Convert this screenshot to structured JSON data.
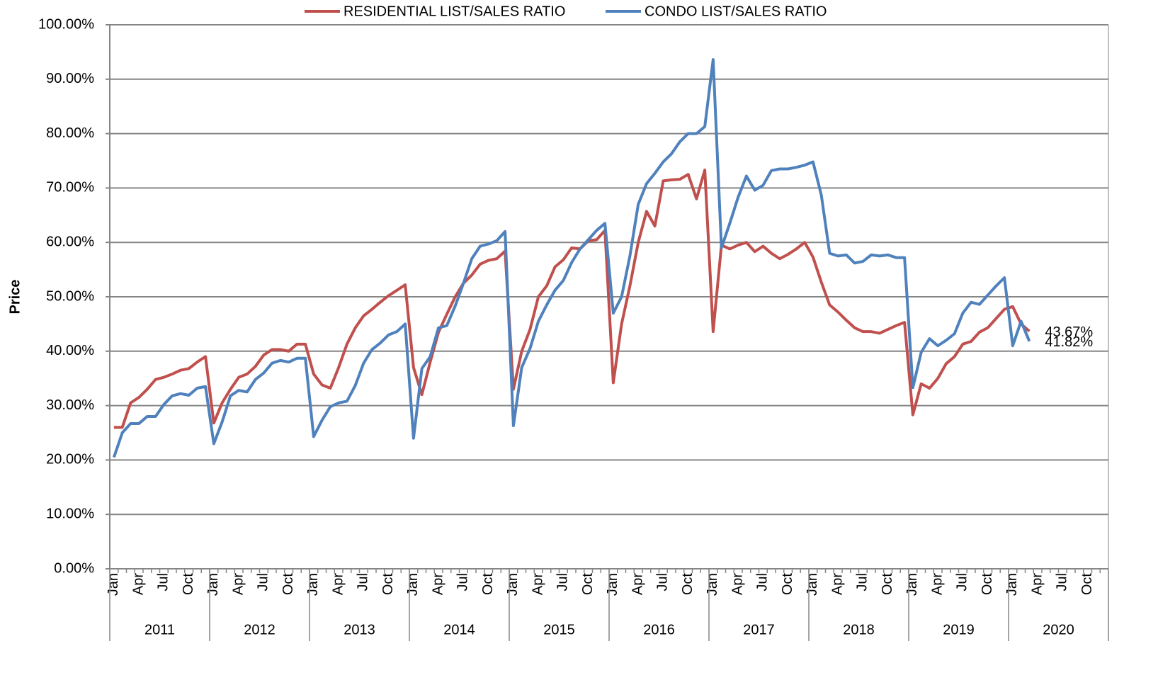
{
  "chart_data": {
    "type": "line",
    "y_label": "Price",
    "categories": [
      "Jan",
      null,
      null,
      "Apr",
      null,
      null,
      "Jul",
      null,
      null,
      "Oct",
      null,
      null,
      "Jan",
      null,
      null,
      "Apr",
      null,
      null,
      "Jul",
      null,
      null,
      "Oct",
      null,
      null,
      "Jan",
      null,
      null,
      "Apr",
      null,
      null,
      "Jul",
      null,
      null,
      "Oct",
      null,
      null,
      "Jan",
      null,
      null,
      "Apr",
      null,
      null,
      "Jul",
      null,
      null,
      "Oct",
      null,
      null,
      "Jan",
      null,
      null,
      "Apr",
      null,
      null,
      "Jul",
      null,
      null,
      "Oct",
      null,
      null,
      "Jan",
      null,
      null,
      "Apr",
      null,
      null,
      "Jul",
      null,
      null,
      "Oct",
      null,
      null,
      "Jan",
      null,
      null,
      "Apr",
      null,
      null,
      "Jul",
      null,
      null,
      "Oct",
      null,
      null,
      "Jan",
      null,
      null,
      "Apr",
      null,
      null,
      "Jul",
      null,
      null,
      "Oct",
      null,
      null,
      "Jan",
      null,
      null,
      "Apr",
      null,
      null,
      "Jul",
      null,
      null,
      "Oct",
      null,
      null,
      "Jan",
      null,
      null,
      "Apr",
      null,
      null,
      "Jul",
      null,
      null,
      "Oct",
      null,
      null
    ],
    "years": [
      "2011",
      "2012",
      "2013",
      "2014",
      "2015",
      "2016",
      "2017",
      "2018",
      "2019",
      "2020"
    ],
    "series": [
      {
        "name": "RESIDENTIAL LIST/SALES RATIO",
        "color": "#c0504d",
        "values": [
          26,
          26,
          30.5,
          31.5,
          33,
          34.8,
          35.2,
          35.8,
          36.5,
          36.8,
          38,
          39,
          26.8,
          30.5,
          33,
          35.2,
          35.8,
          37.2,
          39.3,
          40.3,
          40.3,
          40,
          41.3,
          41.3,
          35.8,
          33.8,
          33.2,
          37,
          41.3,
          44.3,
          46.5,
          47.7,
          49,
          50.2,
          51.2,
          52.2,
          37,
          32,
          38,
          43.5,
          46.8,
          50,
          52.5,
          54,
          56,
          56.7,
          57,
          58.4,
          33,
          40,
          44,
          50,
          52,
          55.5,
          56.8,
          59,
          58.8,
          60.3,
          60.5,
          62.2,
          34.2,
          45,
          52,
          60,
          65.7,
          63,
          71.3,
          71.5,
          71.6,
          72.5,
          68,
          73.3,
          43.6,
          59.5,
          58.8,
          59.5,
          60,
          58.3,
          59.3,
          58,
          57,
          57.8,
          58.8,
          60,
          57.3,
          52.7,
          48.5,
          47.2,
          45.7,
          44.3,
          43.6,
          43.6,
          43.3,
          44,
          44.7,
          45.3,
          28.3,
          34,
          33.2,
          35,
          37.7,
          39,
          41.3,
          41.8,
          43.5,
          44.3,
          46,
          47.7,
          48.2,
          45,
          43.67,
          null,
          null,
          null,
          null,
          null,
          null,
          null,
          null,
          null
        ],
        "value_labels": [
          null,
          null,
          null,
          null,
          null,
          null,
          null,
          null,
          null,
          null,
          null,
          null,
          null,
          null,
          null,
          null,
          null,
          null,
          null,
          null,
          null,
          null,
          null,
          null,
          null,
          null,
          null,
          null,
          null,
          null,
          null,
          null,
          null,
          null,
          null,
          null,
          null,
          null,
          null,
          null,
          null,
          null,
          null,
          null,
          null,
          null,
          null,
          null,
          null,
          null,
          null,
          null,
          null,
          null,
          null,
          null,
          null,
          null,
          null,
          null,
          null,
          null,
          null,
          null,
          null,
          null,
          null,
          null,
          null,
          null,
          null,
          null,
          null,
          null,
          null,
          null,
          null,
          null,
          null,
          null,
          null,
          null,
          null,
          null,
          null,
          null,
          null,
          null,
          null,
          null,
          null,
          null,
          null,
          null,
          null,
          null,
          null,
          null,
          null,
          null,
          null,
          null,
          null,
          null,
          null,
          null,
          null,
          null,
          null,
          null,
          "43.67%",
          null,
          null,
          null,
          null,
          null,
          null,
          null,
          null,
          null
        ]
      },
      {
        "name": "CONDO LIST/SALES RATIO",
        "color": "#4f81bd",
        "values": [
          20.5,
          25,
          26.7,
          26.7,
          28,
          28,
          30.2,
          31.8,
          32.2,
          31.9,
          33.2,
          33.5,
          23,
          27,
          31.8,
          32.8,
          32.5,
          34.8,
          36,
          37.8,
          38.3,
          38,
          38.7,
          38.7,
          24.3,
          27.3,
          29.8,
          30.5,
          30.8,
          33.7,
          37.8,
          40.3,
          41.5,
          43,
          43.6,
          45,
          24,
          36.8,
          39,
          44.3,
          44.7,
          48.3,
          52.5,
          57,
          59.3,
          59.7,
          60.3,
          62,
          26.3,
          37,
          40.5,
          45.5,
          48.5,
          51.2,
          53,
          56.3,
          58.8,
          60.5,
          62.2,
          63.5,
          47,
          50,
          57.5,
          67,
          70.8,
          72.7,
          74.8,
          76.3,
          78.5,
          80,
          80,
          81.3,
          93.6,
          59,
          63.5,
          68.3,
          72.2,
          69.6,
          70.5,
          73.2,
          73.5,
          73.5,
          73.8,
          74.2,
          74.8,
          68.7,
          58,
          57.5,
          57.7,
          56.2,
          56.5,
          57.7,
          57.5,
          57.7,
          57.2,
          57.2,
          33.3,
          39.8,
          42.3,
          41,
          42,
          43.2,
          47,
          49,
          48.6,
          50.3,
          52,
          53.5,
          41,
          45.5,
          41.82,
          null,
          null,
          null,
          null,
          null,
          null,
          null,
          null,
          null
        ],
        "value_labels": [
          null,
          null,
          null,
          null,
          null,
          null,
          null,
          null,
          null,
          null,
          null,
          null,
          null,
          null,
          null,
          null,
          null,
          null,
          null,
          null,
          null,
          null,
          null,
          null,
          null,
          null,
          null,
          null,
          null,
          null,
          null,
          null,
          null,
          null,
          null,
          null,
          null,
          null,
          null,
          null,
          null,
          null,
          null,
          null,
          null,
          null,
          null,
          null,
          null,
          null,
          null,
          null,
          null,
          null,
          null,
          null,
          null,
          null,
          null,
          null,
          null,
          null,
          null,
          null,
          null,
          null,
          null,
          null,
          null,
          null,
          null,
          null,
          null,
          null,
          null,
          null,
          null,
          null,
          null,
          null,
          null,
          null,
          null,
          null,
          null,
          null,
          null,
          null,
          null,
          null,
          null,
          null,
          null,
          null,
          null,
          null,
          null,
          null,
          null,
          null,
          null,
          null,
          null,
          null,
          null,
          null,
          null,
          null,
          null,
          null,
          "41.82%",
          null,
          null,
          null,
          null,
          null,
          null,
          null,
          null,
          null
        ]
      }
    ],
    "ylim": [
      0,
      100
    ],
    "yticks": [
      {
        "value": 0,
        "label": "0.00%"
      },
      {
        "value": 10,
        "label": "10.00%"
      },
      {
        "value": 20,
        "label": "20.00%"
      },
      {
        "value": 30,
        "label": "30.00%"
      },
      {
        "value": 40,
        "label": "40.00%"
      },
      {
        "value": 50,
        "label": "50.00%"
      },
      {
        "value": 60,
        "label": "60.00%"
      },
      {
        "value": 70,
        "label": "70.00%"
      },
      {
        "value": 80,
        "label": "80.00%"
      },
      {
        "value": 90,
        "label": "90.00%"
      },
      {
        "value": 100,
        "label": "100.00%"
      }
    ],
    "grid": true,
    "legend": "top"
  }
}
